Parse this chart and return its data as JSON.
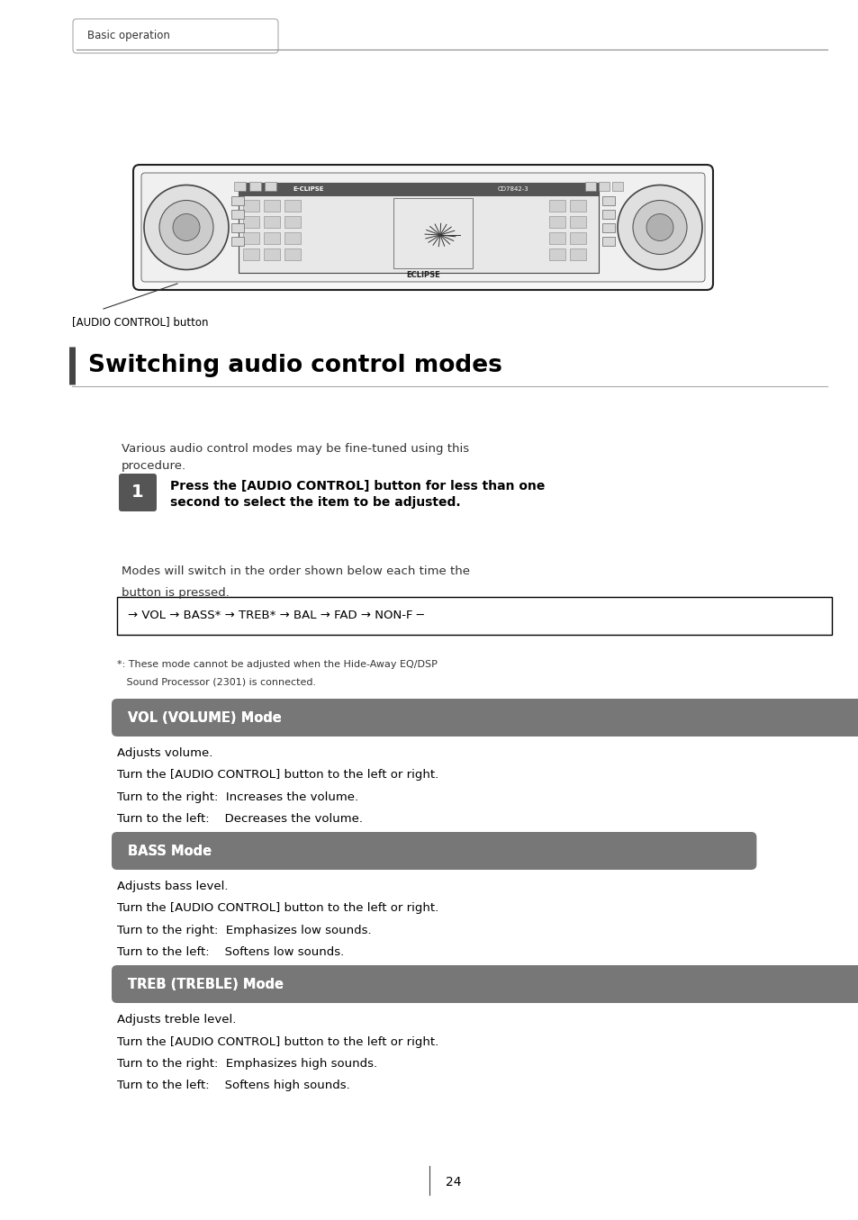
{
  "page_bg": "#ffffff",
  "header_tab_text": "Basic operation",
  "header_tab_border": "#aaaaaa",
  "header_line_color": "#888888",
  "title": "Switching audio control modes",
  "title_fontsize": 19,
  "title_color": "#000000",
  "title_bar_color": "#444444",
  "intro_text": "Various audio control modes may be fine-tuned using this\nprocedure.",
  "step_num": "1",
  "step_bg": "#555555",
  "step_text_line1": "Press the [AUDIO CONTROL] button for less than one",
  "step_text_line2": "second to select the item to be adjusted.",
  "modes_desc_line1": "Modes will switch in the order shown below each time the",
  "modes_desc_line2": "button is pressed.",
  "flow_text": "→ VOL → BASS* → TREB* → BAL → FAD → NON-F ─",
  "footnote_line1": "*: These mode cannot be adjusted when the Hide-Away EQ/DSP",
  "footnote_line2": "   Sound Processor (2301) is connected.",
  "vol_badge_text": "VOL (VOLUME) Mode",
  "vol_badge_bg": "#777777",
  "vol_badge_fg": "#ffffff",
  "vol_lines": [
    "Adjusts volume.",
    "Turn the [AUDIO CONTROL] button to the left or right.",
    "Turn to the right:  Increases the volume.",
    "Turn to the left:    Decreases the volume."
  ],
  "bass_badge_text": "BASS Mode",
  "bass_badge_bg": "#777777",
  "bass_badge_fg": "#ffffff",
  "bass_lines": [
    "Adjusts bass level.",
    "Turn the [AUDIO CONTROL] button to the left or right.",
    "Turn to the right:  Emphasizes low sounds.",
    "Turn to the left:    Softens low sounds."
  ],
  "treb_badge_text": "TREB (TREBLE) Mode",
  "treb_badge_bg": "#777777",
  "treb_badge_fg": "#ffffff",
  "treb_lines": [
    "Adjusts treble level.",
    "Turn the [AUDIO CONTROL] button to the left or right.",
    "Turn to the right:  Emphasizes high sounds.",
    "Turn to the left:    Softens high sounds."
  ],
  "callout_text": "[AUDIO CONTROL] button",
  "page_num": "24"
}
